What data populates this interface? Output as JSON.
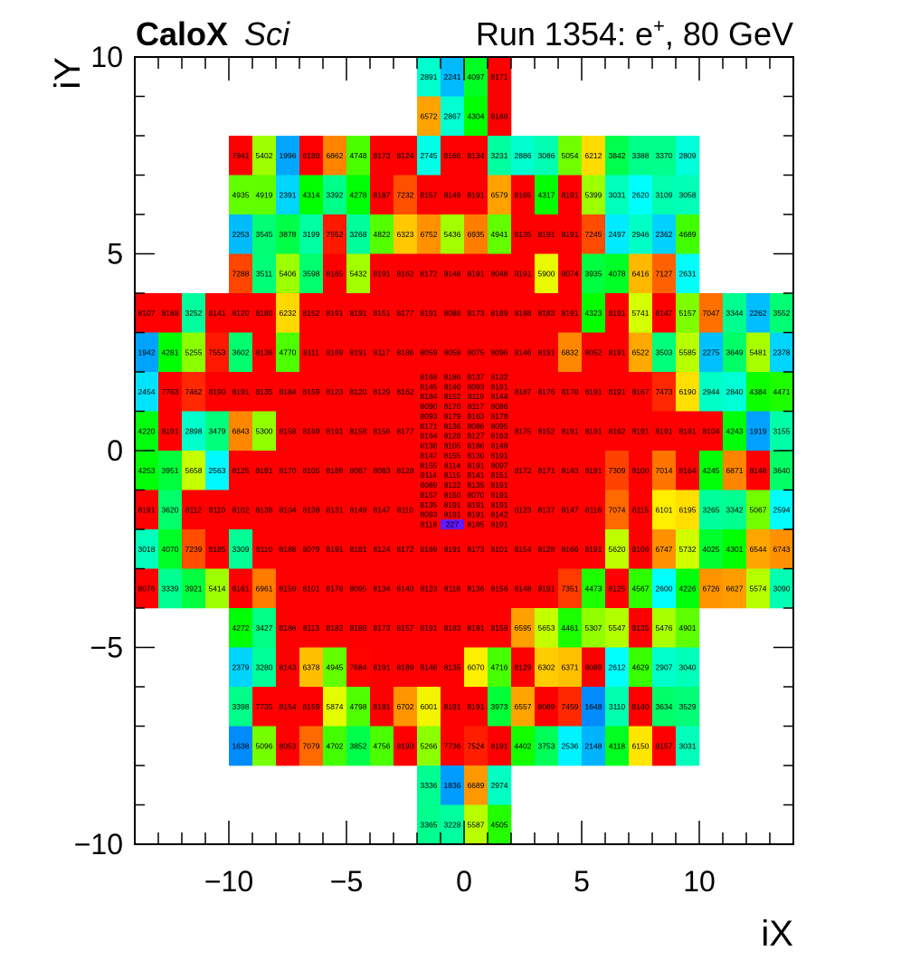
{
  "chart_data": {
    "type": "heatmap",
    "title_left": "CaloX",
    "title_left_italic": "Sci",
    "title_right": "Run 1354: e",
    "title_right_sup": "+",
    "title_right_tail": ", 80 GeV",
    "xlabel": "iX",
    "ylabel": "iY",
    "xlim": [
      -14,
      14
    ],
    "ylim": [
      -10,
      10
    ],
    "zlim": [
      0,
      8191
    ],
    "xticks": [
      "−10",
      "−5",
      "0",
      "5",
      "10"
    ],
    "xtick_values": [
      -10,
      -5,
      0,
      5,
      10
    ],
    "yticks": [
      "−10",
      "−5",
      "0",
      "5",
      "10"
    ],
    "ytick_values": [
      -10,
      -5,
      0,
      5,
      10
    ],
    "segments": [
      {
        "iy": 9,
        "ix0": -2,
        "dy": 1,
        "values": [
          2891,
          2241,
          4097,
          8171
        ]
      },
      {
        "iy": 8,
        "ix0": -2,
        "dy": 1,
        "values": [
          6572,
          2867,
          4304,
          8166
        ]
      },
      {
        "iy": 7,
        "ix0": -10,
        "dy": 1,
        "values": [
          7941,
          5402,
          1996,
          8180,
          6862,
          4748,
          8173,
          8124,
          2745,
          8166,
          8134,
          3231,
          2886,
          3086,
          5054,
          6212,
          3842,
          3388,
          3370,
          2809
        ]
      },
      {
        "iy": 6,
        "ix0": -10,
        "dy": 1,
        "values": [
          4935,
          4919,
          2391,
          4314,
          3392,
          4278,
          8187,
          7232,
          8157,
          8149,
          8191,
          6579,
          8165,
          4317,
          8191,
          5399,
          3031,
          2620,
          3109,
          3058
        ]
      },
      {
        "iy": 5,
        "ix0": -10,
        "dy": 1,
        "values": [
          2253,
          3545,
          3878,
          3199,
          7552,
          3268,
          4822,
          6323,
          6752,
          5436,
          6935,
          4941,
          8135,
          8191,
          8191,
          7245,
          2497,
          2946,
          2362,
          4689
        ]
      },
      {
        "iy": 4,
        "ix0": -10,
        "dy": 1,
        "values": [
          7288,
          3511,
          5406,
          3598,
          8165,
          5432,
          8191,
          8162,
          8172,
          8148,
          8191,
          8048,
          8191,
          5900,
          8074,
          3935,
          4078,
          6416,
          7127,
          2631
        ]
      },
      {
        "iy": 3,
        "ix0": -14,
        "dy": 1,
        "values": [
          8107,
          8168,
          3252,
          8141,
          8120,
          8180,
          6232,
          8152,
          8191,
          8191,
          8151,
          8177,
          8191,
          8088,
          8173,
          8189,
          8188,
          8183,
          8191,
          4323,
          8191,
          5741,
          8147,
          5157,
          7047,
          3344,
          2262,
          3552
        ]
      },
      {
        "iy": 2,
        "ix0": -14,
        "dy": 1,
        "values": [
          1942,
          4281,
          5255,
          7553,
          3602,
          8136,
          4770,
          8111,
          8169,
          8191,
          8117,
          8186,
          8059,
          8058,
          8075,
          8096,
          8146,
          8191,
          6832,
          8052,
          8191,
          6522,
          3503,
          5585,
          2275,
          3649,
          5481,
          2378
        ]
      },
      {
        "iy": 1,
        "ix0": -14,
        "dy": 1,
        "values": [
          2454,
          7763,
          7462,
          8190,
          8191,
          8135,
          8184,
          8159,
          8123,
          8120,
          8129,
          8162
        ]
      },
      {
        "iy": 1,
        "ix0": 2,
        "dy": 1,
        "values": [
          8187,
          8176,
          8170,
          8191,
          8191,
          8167,
          7473,
          6190,
          2944,
          2840,
          4384,
          4471
        ]
      },
      {
        "iy": 0,
        "ix0": -14,
        "dy": 1,
        "values": [
          4220,
          8191,
          2898,
          3479,
          6843,
          5300,
          8158,
          8169,
          8191,
          8158,
          8156,
          8177
        ]
      },
      {
        "iy": 0,
        "ix0": 2,
        "dy": 1,
        "values": [
          8175,
          8152,
          8191,
          8191,
          8162,
          8191,
          8191,
          8161,
          8104,
          4243,
          1919,
          3155
        ]
      },
      {
        "iy": -1,
        "ix0": -14,
        "dy": 1,
        "values": [
          4253,
          3951,
          5658,
          2563,
          8125,
          8191,
          8170,
          8105,
          8189,
          8087,
          8083,
          8128
        ]
      },
      {
        "iy": -1,
        "ix0": 2,
        "dy": 1,
        "values": [
          8172,
          8171,
          8143,
          8191,
          7309,
          8100,
          7014,
          8164,
          4245,
          6871,
          8148,
          3640
        ]
      },
      {
        "iy": -2,
        "ix0": -14,
        "dy": 1,
        "values": [
          8191,
          3620,
          8112,
          8110,
          8102,
          8138,
          8104,
          8138,
          8131,
          8149,
          8147,
          8110
        ]
      },
      {
        "iy": -2,
        "ix0": 2,
        "dy": 1,
        "values": [
          8123,
          8137,
          8147,
          8116,
          7074,
          8115,
          6101,
          6195,
          3265,
          3342,
          5067,
          2594
        ]
      },
      {
        "iy": 1.75,
        "ix0": -2,
        "dy": 0.25,
        "values": [
          8168,
          8186,
          8137,
          8132
        ]
      },
      {
        "iy": 1.5,
        "ix0": -2,
        "dy": 0.25,
        "values": [
          8145,
          8140,
          8093,
          8191
        ]
      },
      {
        "iy": 1.25,
        "ix0": -2,
        "dy": 0.25,
        "values": [
          8184,
          8152,
          8119,
          8144
        ]
      },
      {
        "iy": 1.0,
        "ix0": -2,
        "dy": 0.25,
        "values": [
          8090,
          8170,
          8117,
          8086
        ]
      },
      {
        "iy": 0.75,
        "ix0": -2,
        "dy": 0.25,
        "values": [
          8093,
          8179,
          8163,
          8178
        ]
      },
      {
        "iy": 0.5,
        "ix0": -2,
        "dy": 0.25,
        "values": [
          8171,
          8136,
          8086,
          8095
        ]
      },
      {
        "iy": 0.25,
        "ix0": -2,
        "dy": 0.25,
        "values": [
          8164,
          8128,
          8127,
          8163
        ]
      },
      {
        "iy": 0.0,
        "ix0": -2,
        "dy": 0.25,
        "values": [
          8138,
          8105,
          8186,
          8148
        ]
      },
      {
        "iy": -0.25,
        "ix0": -2,
        "dy": 0.25,
        "values": [
          8147,
          8155,
          8130,
          8191
        ]
      },
      {
        "iy": -0.5,
        "ix0": -2,
        "dy": 0.25,
        "values": [
          8155,
          8114,
          8191,
          8097
        ]
      },
      {
        "iy": -0.75,
        "ix0": -2,
        "dy": 0.25,
        "values": [
          8114,
          8115,
          8141,
          8151
        ]
      },
      {
        "iy": -1.0,
        "ix0": -2,
        "dy": 0.25,
        "values": [
          8089,
          8122,
          8135,
          8191
        ]
      },
      {
        "iy": -1.25,
        "ix0": -2,
        "dy": 0.25,
        "values": [
          8157,
          8150,
          8070,
          8191
        ]
      },
      {
        "iy": -1.5,
        "ix0": -2,
        "dy": 0.25,
        "values": [
          8135,
          8191,
          8191,
          8191
        ]
      },
      {
        "iy": -1.75,
        "ix0": -2,
        "dy": 0.25,
        "values": [
          8093,
          8191,
          8191,
          8142
        ]
      },
      {
        "iy": -2.0,
        "ix0": -2,
        "dy": 0.25,
        "values": [
          8118,
          227,
          8185,
          8191
        ]
      },
      {
        "iy": -3,
        "ix0": -14,
        "dy": 1,
        "values": [
          3018,
          4070,
          7239,
          8185,
          3309,
          8110,
          8188,
          8079,
          8191,
          8181,
          8124,
          8172,
          8169,
          8191,
          8173,
          8101,
          8154,
          8128,
          8166,
          8191,
          5620,
          8106,
          6747,
          5732,
          4025,
          4301,
          6544,
          6743
        ]
      },
      {
        "iy": -4,
        "ix0": -14,
        "dy": 1,
        "values": [
          8076,
          3339,
          3921,
          5414,
          8161,
          6961,
          8159,
          8101,
          8178,
          8095,
          8134,
          8140,
          8123,
          8118,
          8136,
          8156,
          8148,
          8191,
          7351,
          4473,
          8125,
          4567,
          2600,
          4226,
          6726,
          6627,
          5574,
          3090
        ]
      },
      {
        "iy": -5,
        "ix0": -10,
        "dy": 1,
        "values": [
          4272,
          3427,
          8186,
          8113,
          8182,
          8188,
          8173,
          8157,
          8191,
          8183,
          8191,
          8159,
          6595,
          5653,
          4461,
          5307,
          5547,
          8135,
          5476,
          4901
        ]
      },
      {
        "iy": -6,
        "ix0": -10,
        "dy": 1,
        "values": [
          2379,
          3280,
          8143,
          6378,
          4945,
          7684,
          8191,
          8189,
          8148,
          8135,
          6070,
          4716,
          8129,
          6302,
          6371,
          8089,
          2612,
          4629,
          2907,
          3040
        ]
      },
      {
        "iy": -7,
        "ix0": -10,
        "dy": 1,
        "values": [
          3398,
          7735,
          8154,
          8159,
          5874,
          4798,
          8191,
          6702,
          6001,
          8191,
          8191,
          3973,
          6557,
          8089,
          7459,
          1648,
          3110,
          8140,
          3634,
          3529
        ]
      },
      {
        "iy": -8,
        "ix0": -10,
        "dy": 1,
        "values": [
          1638,
          5096,
          8053,
          7079,
          4702,
          3852,
          4756,
          8190,
          5266,
          7736,
          7524,
          8191,
          4402,
          3753,
          2536,
          2148,
          4118,
          6150,
          8157,
          3031
        ]
      },
      {
        "iy": -9,
        "ix0": -2,
        "dy": 1,
        "values": [
          3336,
          1836,
          6689,
          2974
        ]
      },
      {
        "iy": -10,
        "ix0": -2,
        "dy": 1,
        "values": [
          3365,
          3228,
          5587,
          4505
        ]
      }
    ],
    "colormap": [
      [
        0,
        "#7000ff"
      ],
      [
        300,
        "#6020ff"
      ],
      [
        1600,
        "#0088ff"
      ],
      [
        2250,
        "#00bbff"
      ],
      [
        2600,
        "#00ffff"
      ],
      [
        2900,
        "#00ffcc"
      ],
      [
        3400,
        "#00ff88"
      ],
      [
        3900,
        "#00ff44"
      ],
      [
        4300,
        "#00ff00"
      ],
      [
        4700,
        "#44ff00"
      ],
      [
        5100,
        "#77ff00"
      ],
      [
        5500,
        "#aaff00"
      ],
      [
        5800,
        "#ddff00"
      ],
      [
        6100,
        "#ffee00"
      ],
      [
        6500,
        "#ffaa00"
      ],
      [
        7000,
        "#ff7700"
      ],
      [
        7400,
        "#ff3300"
      ],
      [
        7700,
        "#ff0000"
      ],
      [
        8191,
        "#ff0000"
      ]
    ]
  }
}
